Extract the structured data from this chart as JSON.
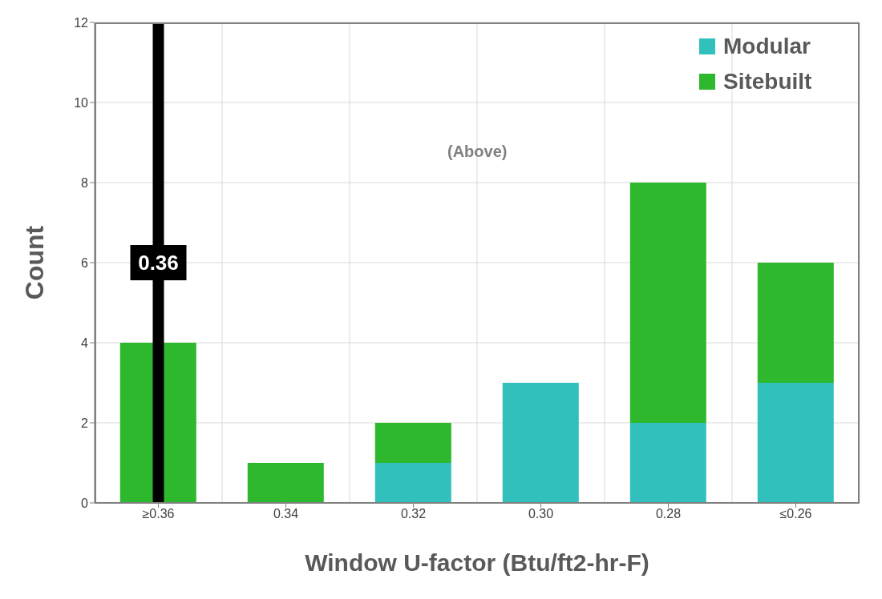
{
  "chart_data": {
    "type": "bar",
    "stacked": true,
    "xlabel": "Window U-factor (Btu/ft2-hr-F)",
    "ylabel": "Count",
    "categories": [
      "≥0.36",
      "0.34",
      "0.32",
      "0.30",
      "0.28",
      "≤0.26"
    ],
    "series": [
      {
        "name": "Modular",
        "color": "#31c0bc",
        "values": [
          0,
          0,
          1,
          3,
          2,
          3
        ]
      },
      {
        "name": "Sitebuilt",
        "color": "#2eb82e",
        "values": [
          4,
          1,
          1,
          0,
          6,
          3
        ]
      }
    ],
    "ylim": [
      0,
      12
    ],
    "yticks": [
      0,
      2,
      4,
      6,
      8,
      10,
      12
    ],
    "grid": true,
    "legend": "top right",
    "ref_lines": [
      {
        "axis": "x",
        "value": "≥0.36",
        "label": "0.36",
        "color": "#000000"
      }
    ],
    "annotations": [
      "(Above)"
    ]
  }
}
